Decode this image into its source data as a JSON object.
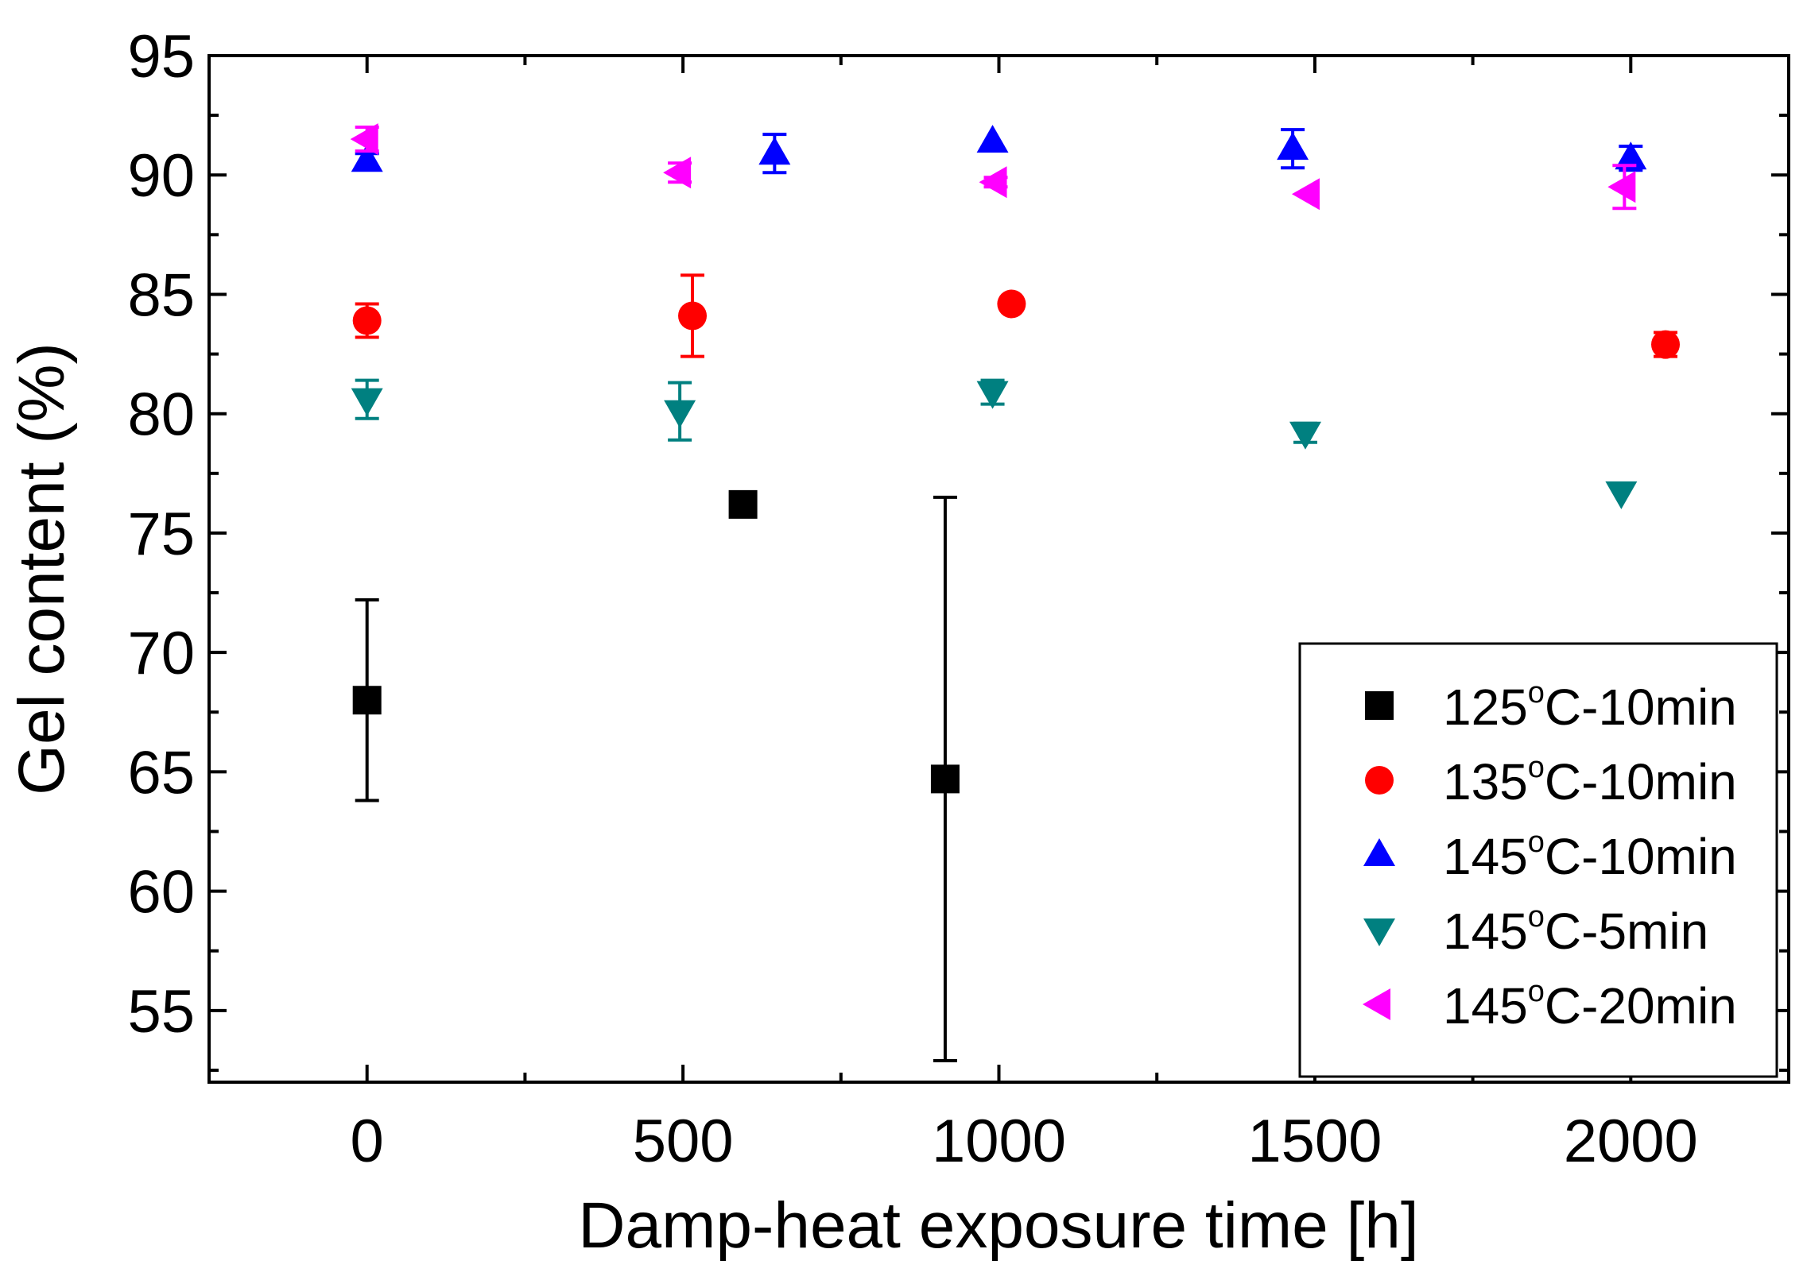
{
  "chart_data": {
    "type": "scatter",
    "title": "",
    "xlabel": "Damp-heat exposure time [h]",
    "ylabel": "Gel content (%)",
    "xlim": [
      -250,
      2250
    ],
    "ylim": [
      52,
      95
    ],
    "xticks": [
      0,
      500,
      1000,
      1500,
      2000
    ],
    "yticks": [
      55,
      60,
      65,
      70,
      75,
      80,
      85,
      90,
      95
    ],
    "grid": false,
    "legend_position": "bottom-right",
    "series": [
      {
        "name": "125°C-10min",
        "label_pre": "125",
        "label_sup": "o",
        "label_post": "C-10min",
        "color": "#000000",
        "marker": "square",
        "points": [
          {
            "x": 0,
            "y": 68.0,
            "err": 4.2
          },
          {
            "x": 595,
            "y": 76.2,
            "err": 0
          },
          {
            "x": 915,
            "y": 64.7,
            "err": 11.8
          }
        ]
      },
      {
        "name": "135°C-10min",
        "label_pre": "135",
        "label_sup": "o",
        "label_post": "C-10min",
        "color": "#ff0000",
        "marker": "circle",
        "points": [
          {
            "x": 0,
            "y": 83.9,
            "err": 0.7
          },
          {
            "x": 515,
            "y": 84.1,
            "err": 1.7
          },
          {
            "x": 1020,
            "y": 84.6,
            "err": 0
          },
          {
            "x": 2055,
            "y": 82.9,
            "err": 0.5
          }
        ]
      },
      {
        "name": "145°C-10min",
        "label_pre": "145",
        "label_sup": "o",
        "label_post": "C-10min",
        "color": "#0000ff",
        "marker": "triangle-up",
        "points": [
          {
            "x": 0,
            "y": 90.6,
            "err": 0.3
          },
          {
            "x": 645,
            "y": 90.9,
            "err": 0.8
          },
          {
            "x": 990,
            "y": 91.4,
            "err": 0
          },
          {
            "x": 1465,
            "y": 91.1,
            "err": 0.8
          },
          {
            "x": 2000,
            "y": 90.7,
            "err": 0.5
          }
        ]
      },
      {
        "name": "145°C-5min",
        "label_pre": "145",
        "label_sup": "o",
        "label_post": "C-5min",
        "color": "#008080",
        "marker": "triangle-down",
        "points": [
          {
            "x": 0,
            "y": 80.6,
            "err": 0.8
          },
          {
            "x": 495,
            "y": 80.1,
            "err": 1.2
          },
          {
            "x": 990,
            "y": 80.9,
            "err": 0.5
          },
          {
            "x": 1485,
            "y": 79.2,
            "err": 0.4
          },
          {
            "x": 1985,
            "y": 76.7,
            "err": 0
          }
        ]
      },
      {
        "name": "145°C-20min",
        "label_pre": "145",
        "label_sup": "o",
        "label_post": "C-20min",
        "color": "#ff00ff",
        "marker": "triangle-left",
        "points": [
          {
            "x": 0,
            "y": 91.5,
            "err": 0.5
          },
          {
            "x": 495,
            "y": 90.1,
            "err": 0.4
          },
          {
            "x": 995,
            "y": 89.7,
            "err": 0.2
          },
          {
            "x": 1490,
            "y": 89.2,
            "err": 0
          },
          {
            "x": 1990,
            "y": 89.5,
            "err": 0.9
          }
        ]
      }
    ]
  }
}
